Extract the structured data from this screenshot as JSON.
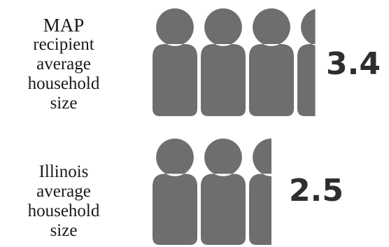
{
  "chart_data": {
    "type": "pictograph",
    "unit": "person",
    "fill_color": "#6e6e6e",
    "rows": [
      {
        "label_lines": [
          "MAP",
          "recipient",
          "average",
          "household",
          "size"
        ],
        "value": 3.4,
        "value_text": "3.4"
      },
      {
        "label_lines": [
          "Illinois",
          "average",
          "household",
          "size"
        ],
        "value": 2.5,
        "value_text": "2.5"
      }
    ]
  }
}
